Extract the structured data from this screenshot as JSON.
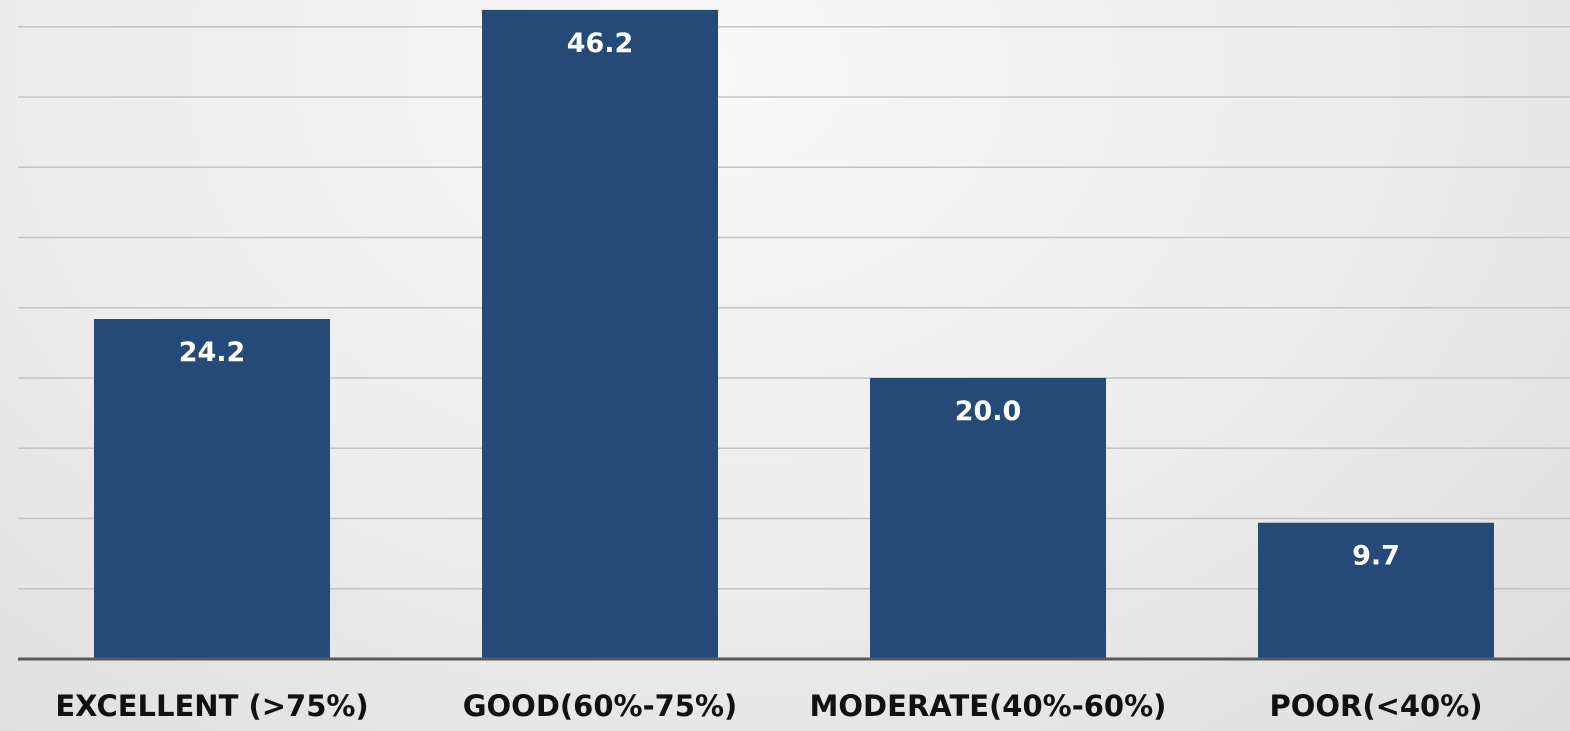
{
  "chart_data": {
    "type": "bar",
    "categories": [
      "EXCELLENT (>75%)",
      "GOOD(60%-75%)",
      "MODERATE(40%-60%)",
      "POOR(<40%)"
    ],
    "values": [
      24.2,
      46.2,
      20.0,
      9.7
    ],
    "data_labels": [
      "24.2",
      "46.2",
      "20.0",
      "9.7"
    ],
    "title": "",
    "xlabel": "",
    "ylabel": "",
    "ylim": [
      0,
      45
    ],
    "grid": true,
    "bar_color": "#264a78",
    "label_color": "#ffffff",
    "axis_color": "#595959",
    "grid_color": "#c4c4c4"
  }
}
